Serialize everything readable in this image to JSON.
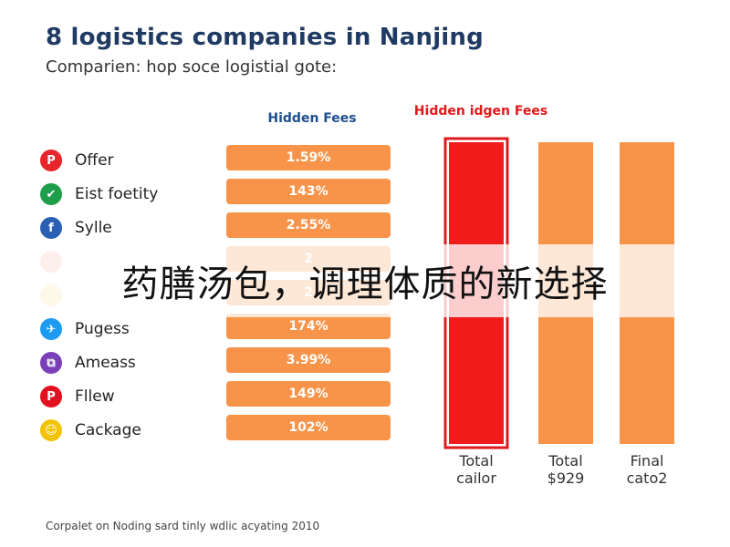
{
  "chart_data": {
    "type": "bar",
    "title": "8 logistics companies in Nanjing",
    "subtitle": "Comparien: hop soce logistial gote:",
    "fees_header": "Hidden Fees",
    "hidden_header": "Hidden idgen Fees",
    "rows": [
      {
        "label": "Offer",
        "icon": "parking-icon",
        "glyph": "P",
        "color": "#e8252a",
        "fee": "1.59%"
      },
      {
        "label": "Eist foetity",
        "icon": "checkmark-icon",
        "glyph": "✔",
        "color": "#1e9e4a",
        "fee": "143%"
      },
      {
        "label": "Sylle",
        "icon": "facebook-icon",
        "glyph": "f",
        "color": "#2b5fb4",
        "fee": "2.55%"
      },
      {
        "label": "",
        "icon": "faded-red-icon",
        "glyph": "",
        "color": "#f6b8a8",
        "fee": "2"
      },
      {
        "label": "",
        "icon": "faded-yellow-icon",
        "glyph": "",
        "color": "#f8dfa0",
        "fee": "2"
      },
      {
        "label": "Pugess",
        "icon": "twitter-bird-icon",
        "glyph": "✈",
        "color": "#1d9bf0",
        "fee": "174%"
      },
      {
        "label": "Ameass",
        "icon": "purple-circle-icon",
        "glyph": "⧉",
        "color": "#7b3fb8",
        "fee": "3.99%"
      },
      {
        "label": "Fllew",
        "icon": "pinterest-icon",
        "glyph": "P",
        "color": "#e3111f",
        "fee": "149%"
      },
      {
        "label": "Cackage",
        "icon": "snapchat-icon",
        "glyph": "☺",
        "color": "#f2c300",
        "fee": "102%"
      }
    ],
    "columns": [
      {
        "label_line1": "Total",
        "label_line2": "cailor",
        "color": "#f01b1b",
        "highlighted": true
      },
      {
        "label_line1": "Total",
        "label_line2": "$929",
        "color": "#f7944a",
        "highlighted": false
      },
      {
        "label_line1": "Final",
        "label_line2": "cato2",
        "color": "#f7944a",
        "highlighted": false
      }
    ]
  },
  "overlay_text": "药膳汤包，调理体质的新选择",
  "footer": "Corpalet on Noding sard tinly wdlic acyating 2010"
}
